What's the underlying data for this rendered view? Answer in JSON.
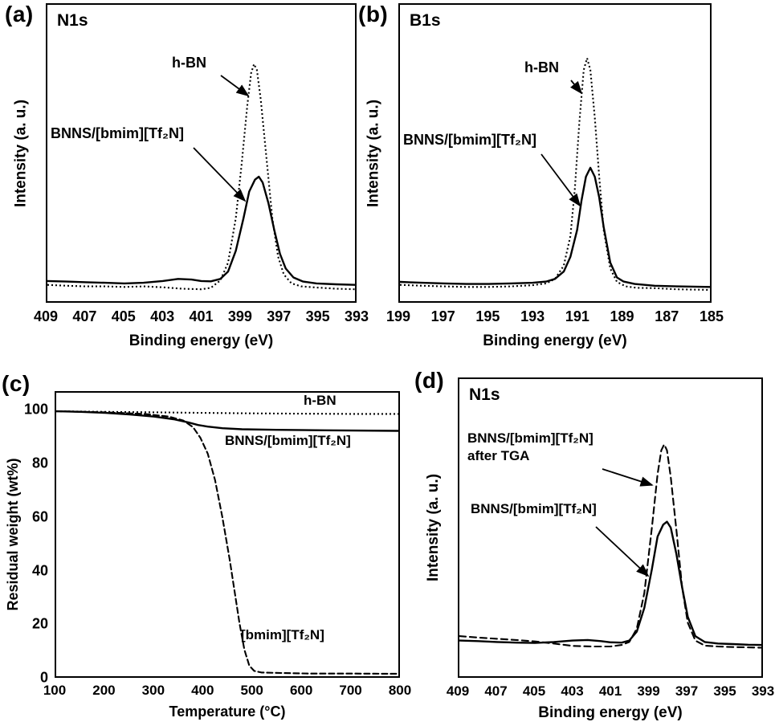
{
  "panels": {
    "a": {
      "tag": "(a)",
      "title": "N1s",
      "ylabel": "Intensity (a. u.)",
      "xlabel": "Binding energy (eV)",
      "annotations": {
        "hbn": "h-BN",
        "bnns": "BNNS/[bmim][Tf₂N]"
      }
    },
    "b": {
      "tag": "(b)",
      "title": "B1s",
      "ylabel": "Intensity (a. u.)",
      "xlabel": "Binding energy (eV)",
      "annotations": {
        "hbn": "h-BN",
        "bnns": "BNNS/[bmim][Tf₂N]"
      }
    },
    "c": {
      "tag": "(c)",
      "ylabel": "Residual weight (wt%)",
      "xlabel": "Temperature (°C)",
      "annotations": {
        "hbn": "h-BN",
        "bnns": "BNNS/[bmim][Tf₂N]",
        "il": "[bmim][Tf₂N]"
      }
    },
    "d": {
      "tag": "(d)",
      "title": "N1s",
      "ylabel": "Intensity (a. u.)",
      "xlabel": "Binding energy (eV)",
      "annotations": {
        "line1": "BNNS/[bmim][Tf₂N]",
        "line2": "after TGA",
        "bnns": "BNNS/[bmim][Tf₂N]"
      }
    }
  },
  "chart_data": [
    {
      "id": "a",
      "type": "line",
      "title": "N1s",
      "xlabel": "Binding energy (eV)",
      "ylabel": "Intensity (a. u.)",
      "xlim": [
        409,
        393
      ],
      "ylim": [
        0,
        1
      ],
      "xticks": [
        409,
        407,
        405,
        403,
        401,
        399,
        397,
        395,
        393
      ],
      "series": [
        {
          "name": "h-BN",
          "style": "dotted",
          "points": [
            [
              409,
              0.055
            ],
            [
              408,
              0.052
            ],
            [
              407,
              0.05
            ],
            [
              406,
              0.05
            ],
            [
              405,
              0.048
            ],
            [
              404,
              0.05
            ],
            [
              403,
              0.047
            ],
            [
              402,
              0.042
            ],
            [
              401,
              0.04
            ],
            [
              400.5,
              0.045
            ],
            [
              400,
              0.07
            ],
            [
              399.6,
              0.13
            ],
            [
              399.2,
              0.28
            ],
            [
              398.9,
              0.46
            ],
            [
              398.6,
              0.66
            ],
            [
              398.4,
              0.77
            ],
            [
              398.25,
              0.8
            ],
            [
              398.1,
              0.78
            ],
            [
              397.9,
              0.68
            ],
            [
              397.6,
              0.48
            ],
            [
              397.3,
              0.28
            ],
            [
              397,
              0.15
            ],
            [
              396.7,
              0.09
            ],
            [
              396.3,
              0.06
            ],
            [
              395.8,
              0.05
            ],
            [
              395,
              0.046
            ],
            [
              394,
              0.042
            ],
            [
              393,
              0.04
            ]
          ]
        },
        {
          "name": "BNNS/[bmim][Tf₂N]",
          "style": "solid",
          "points": [
            [
              409,
              0.068
            ],
            [
              408,
              0.066
            ],
            [
              407,
              0.064
            ],
            [
              406,
              0.062
            ],
            [
              405,
              0.06
            ],
            [
              404,
              0.062
            ],
            [
              403,
              0.068
            ],
            [
              402.2,
              0.075
            ],
            [
              401.5,
              0.073
            ],
            [
              401,
              0.068
            ],
            [
              400.5,
              0.067
            ],
            [
              400,
              0.075
            ],
            [
              399.6,
              0.1
            ],
            [
              399.2,
              0.17
            ],
            [
              398.8,
              0.28
            ],
            [
              398.5,
              0.37
            ],
            [
              398.2,
              0.41
            ],
            [
              398,
              0.42
            ],
            [
              397.8,
              0.4
            ],
            [
              397.5,
              0.33
            ],
            [
              397.2,
              0.24
            ],
            [
              396.9,
              0.16
            ],
            [
              396.6,
              0.11
            ],
            [
              396.2,
              0.08
            ],
            [
              395.7,
              0.066
            ],
            [
              395,
              0.06
            ],
            [
              394,
              0.057
            ],
            [
              393,
              0.055
            ]
          ]
        }
      ]
    },
    {
      "id": "b",
      "type": "line",
      "title": "B1s",
      "xlabel": "Binding energy (eV)",
      "ylabel": "Intensity (a. u.)",
      "xlim": [
        199,
        185
      ],
      "ylim": [
        0,
        1
      ],
      "xticks": [
        199,
        197,
        195,
        193,
        191,
        189,
        187,
        185
      ],
      "series": [
        {
          "name": "h-BN",
          "style": "dotted",
          "points": [
            [
              199,
              0.055
            ],
            [
              198,
              0.052
            ],
            [
              197,
              0.05
            ],
            [
              196,
              0.048
            ],
            [
              195,
              0.048
            ],
            [
              194,
              0.05
            ],
            [
              193,
              0.054
            ],
            [
              192.4,
              0.06
            ],
            [
              192,
              0.075
            ],
            [
              191.6,
              0.12
            ],
            [
              191.3,
              0.22
            ],
            [
              191.1,
              0.38
            ],
            [
              190.9,
              0.6
            ],
            [
              190.7,
              0.78
            ],
            [
              190.55,
              0.82
            ],
            [
              190.4,
              0.78
            ],
            [
              190.2,
              0.62
            ],
            [
              190,
              0.42
            ],
            [
              189.8,
              0.24
            ],
            [
              189.5,
              0.11
            ],
            [
              189.2,
              0.065
            ],
            [
              188.8,
              0.05
            ],
            [
              188.3,
              0.045
            ],
            [
              187.5,
              0.044
            ],
            [
              186.5,
              0.04
            ],
            [
              185,
              0.038
            ]
          ]
        },
        {
          "name": "BNNS/[bmim][Tf₂N]",
          "style": "solid",
          "points": [
            [
              199,
              0.065
            ],
            [
              198,
              0.062
            ],
            [
              197,
              0.06
            ],
            [
              196,
              0.058
            ],
            [
              195,
              0.058
            ],
            [
              194,
              0.06
            ],
            [
              193,
              0.062
            ],
            [
              192.4,
              0.066
            ],
            [
              192,
              0.075
            ],
            [
              191.6,
              0.1
            ],
            [
              191.3,
              0.15
            ],
            [
              191,
              0.24
            ],
            [
              190.8,
              0.34
            ],
            [
              190.6,
              0.42
            ],
            [
              190.4,
              0.45
            ],
            [
              190.2,
              0.42
            ],
            [
              190,
              0.35
            ],
            [
              189.8,
              0.25
            ],
            [
              189.5,
              0.13
            ],
            [
              189.2,
              0.08
            ],
            [
              188.9,
              0.066
            ],
            [
              188.4,
              0.058
            ],
            [
              187.5,
              0.052
            ],
            [
              186.5,
              0.05
            ],
            [
              185,
              0.048
            ]
          ]
        }
      ]
    },
    {
      "id": "c",
      "type": "line",
      "xlabel": "Temperature (°C)",
      "ylabel": "Residual weight (wt%)",
      "xlim": [
        100,
        800
      ],
      "ylim": [
        0,
        107
      ],
      "xticks": [
        100,
        200,
        300,
        400,
        500,
        600,
        700,
        800
      ],
      "yticks": [
        0,
        20,
        40,
        60,
        80,
        100
      ],
      "series": [
        {
          "name": "h-BN",
          "style": "dotted",
          "points": [
            [
              100,
              100
            ],
            [
              200,
              99.8
            ],
            [
              300,
              99.6
            ],
            [
              400,
              99.4
            ],
            [
              500,
              99.2
            ],
            [
              600,
              99.1
            ],
            [
              700,
              99
            ],
            [
              800,
              99
            ]
          ]
        },
        {
          "name": "BNNS/[bmim][Tf₂N]",
          "style": "solid",
          "points": [
            [
              100,
              100
            ],
            [
              150,
              99.8
            ],
            [
              200,
              99.4
            ],
            [
              250,
              98.8
            ],
            [
              300,
              98
            ],
            [
              340,
              97
            ],
            [
              370,
              95.8
            ],
            [
              390,
              94.8
            ],
            [
              410,
              94.2
            ],
            [
              440,
              93.6
            ],
            [
              480,
              93.2
            ],
            [
              550,
              93
            ],
            [
              650,
              92.8
            ],
            [
              800,
              92.6
            ]
          ]
        },
        {
          "name": "[bmim][Tf₂N]",
          "style": "dashed",
          "dash": "7 4",
          "points": [
            [
              100,
              100
            ],
            [
              200,
              99.6
            ],
            [
              280,
              99
            ],
            [
              330,
              98
            ],
            [
              360,
              96.5
            ],
            [
              380,
              94
            ],
            [
              395,
              90
            ],
            [
              410,
              84
            ],
            [
              425,
              74
            ],
            [
              440,
              60
            ],
            [
              455,
              44
            ],
            [
              465,
              32
            ],
            [
              475,
              20
            ],
            [
              485,
              10
            ],
            [
              495,
              4
            ],
            [
              505,
              2
            ],
            [
              520,
              1.4
            ],
            [
              560,
              1.2
            ],
            [
              620,
              1
            ],
            [
              700,
              1
            ],
            [
              800,
              0.9
            ]
          ]
        }
      ]
    },
    {
      "id": "d",
      "type": "line",
      "title": "N1s",
      "xlabel": "Binding energy (eV)",
      "ylabel": "Intensity (a. u.)",
      "xlim": [
        409,
        393
      ],
      "ylim": [
        0,
        1
      ],
      "xticks": [
        409,
        407,
        405,
        403,
        401,
        399,
        397,
        395,
        393
      ],
      "series": [
        {
          "name": "BNNS/[bmim][Tf₂N] after TGA",
          "style": "dashed",
          "dash": "8 5",
          "points": [
            [
              409,
              0.135
            ],
            [
              408,
              0.13
            ],
            [
              407,
              0.126
            ],
            [
              406,
              0.122
            ],
            [
              405,
              0.117
            ],
            [
              404,
              0.11
            ],
            [
              403,
              0.102
            ],
            [
              402,
              0.1
            ],
            [
              401,
              0.1
            ],
            [
              400.4,
              0.105
            ],
            [
              400,
              0.115
            ],
            [
              399.6,
              0.16
            ],
            [
              399.2,
              0.28
            ],
            [
              398.8,
              0.5
            ],
            [
              398.5,
              0.68
            ],
            [
              398.3,
              0.76
            ],
            [
              398.15,
              0.78
            ],
            [
              398,
              0.76
            ],
            [
              397.8,
              0.67
            ],
            [
              397.5,
              0.49
            ],
            [
              397.2,
              0.3
            ],
            [
              396.9,
              0.18
            ],
            [
              396.5,
              0.12
            ],
            [
              396,
              0.103
            ],
            [
              395.3,
              0.1
            ],
            [
              394.5,
              0.098
            ],
            [
              393.7,
              0.097
            ],
            [
              393,
              0.096
            ]
          ]
        },
        {
          "name": "BNNS/[bmim][Tf₂N]",
          "style": "solid",
          "points": [
            [
              409,
              0.12
            ],
            [
              408,
              0.118
            ],
            [
              407,
              0.115
            ],
            [
              406,
              0.113
            ],
            [
              405,
              0.112
            ],
            [
              404,
              0.115
            ],
            [
              403,
              0.12
            ],
            [
              402.2,
              0.122
            ],
            [
              401.5,
              0.118
            ],
            [
              401,
              0.114
            ],
            [
              400.4,
              0.113
            ],
            [
              400,
              0.12
            ],
            [
              399.6,
              0.15
            ],
            [
              399.2,
              0.23
            ],
            [
              398.8,
              0.36
            ],
            [
              398.5,
              0.47
            ],
            [
              398.2,
              0.51
            ],
            [
              398,
              0.52
            ],
            [
              397.8,
              0.5
            ],
            [
              397.5,
              0.41
            ],
            [
              397.2,
              0.3
            ],
            [
              396.9,
              0.2
            ],
            [
              396.5,
              0.135
            ],
            [
              396,
              0.115
            ],
            [
              395.3,
              0.11
            ],
            [
              394.5,
              0.108
            ],
            [
              393.7,
              0.106
            ],
            [
              393,
              0.105
            ]
          ]
        }
      ]
    }
  ]
}
